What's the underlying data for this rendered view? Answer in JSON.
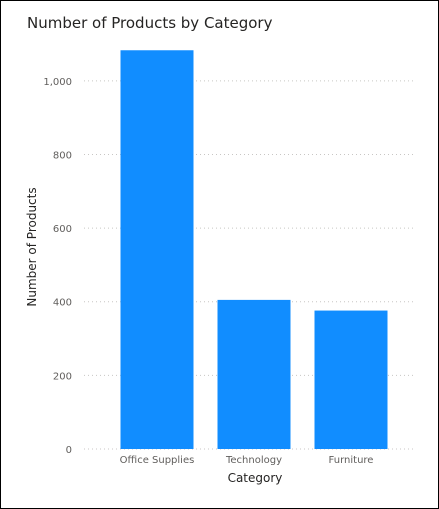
{
  "chart_data": {
    "type": "bar",
    "title": "Number of Products by Category",
    "xlabel": "Category",
    "ylabel": "Number of Products",
    "categories": [
      "Office Supplies",
      "Technology",
      "Furniture"
    ],
    "values": [
      1083,
      405,
      376
    ],
    "ylim": [
      0,
      1100
    ],
    "yticks": [
      0,
      200,
      400,
      600,
      800,
      1000
    ],
    "ytick_labels": [
      "0",
      "200",
      "400",
      "600",
      "800",
      "1,000"
    ],
    "grid": true,
    "legend": "none",
    "colors": {
      "bar": "#118dff",
      "grid": "#c8c6c4"
    }
  }
}
